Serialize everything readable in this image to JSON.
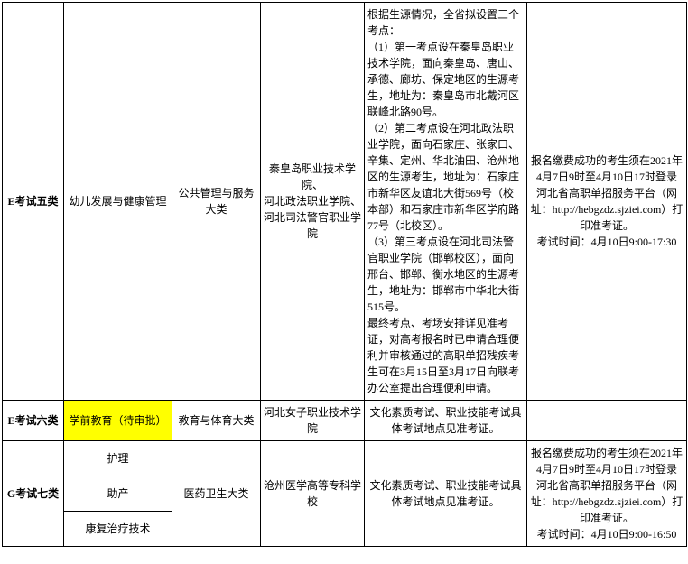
{
  "rows": {
    "row1": {
      "category": "E考试五类",
      "major": "幼儿发展与健康管理",
      "majorGroup": "公共管理与服务大类",
      "schools": "秦皇岛职业技术学院、\n河北政法职业学院、\n河北司法警官职业学院",
      "location": "根据生源情况，全省拟设置三个考点：\n（1）第一考点设在秦皇岛职业技术学院，面向秦皇岛、唐山、承德、廊坊、保定地区的生源考生，地址为：秦皇岛市北戴河区联峰北路90号。\n（2）第二考点设在河北政法职业学院，面向石家庄、张家口、辛集、定州、华北油田、沧州地区的生源考生，地址为：石家庄市新华区友谊北大街569号（校本部）和石家庄市新华区学府路77号（北校区）。\n（3）第三考点设在河北司法警官职业学院（邯郸校区），面向邢台、邯郸、衡水地区的生源考生，地址为：邯郸市中华北大街515号。\n最终考点、考场安排详见准考证，对高考报名时已申请合理便利并审核通过的高职单招残疾考生可在3月15日至3月17日向联考办公室提出合理便利申请。",
      "info": "报名缴费成功的考生须在2021年4月7日9时至4月10日17时登录\n河北省高职单招服务平台（网址：http://hebgzdz.sjziei.com）打印准考证。\n考试时间：4月10日9:00-17:30"
    },
    "row2": {
      "category": "E考试六类",
      "major": "学前教育（待审批）",
      "majorGroup": "教育与体育大类",
      "schools": "河北女子职业技术学院",
      "location": "文化素质考试、职业技能考试具体考试地点见准考证。",
      "info": ""
    },
    "row3": {
      "category": "G考试七类",
      "major1": "护理",
      "major2": "助产",
      "major3": "康复治疗技术",
      "majorGroup": "医药卫生大类",
      "schools": "沧州医学高等专科学校",
      "location": "文化素质考试、职业技能考试具体考试地点见准考证。",
      "info": "报名缴费成功的考生须在2021年4月7日9时至4月10日17时登录\n河北省高职单招服务平台（网址：http://hebgzdz.sjziei.com）打印准考证。\n考试时间：4月10日9:00-16:50"
    }
  },
  "styling": {
    "highlightColor": "#ffff00",
    "borderColor": "#000000",
    "backgroundColor": "#ffffff",
    "fontSize": 12,
    "fontFamily": "SimSun"
  }
}
